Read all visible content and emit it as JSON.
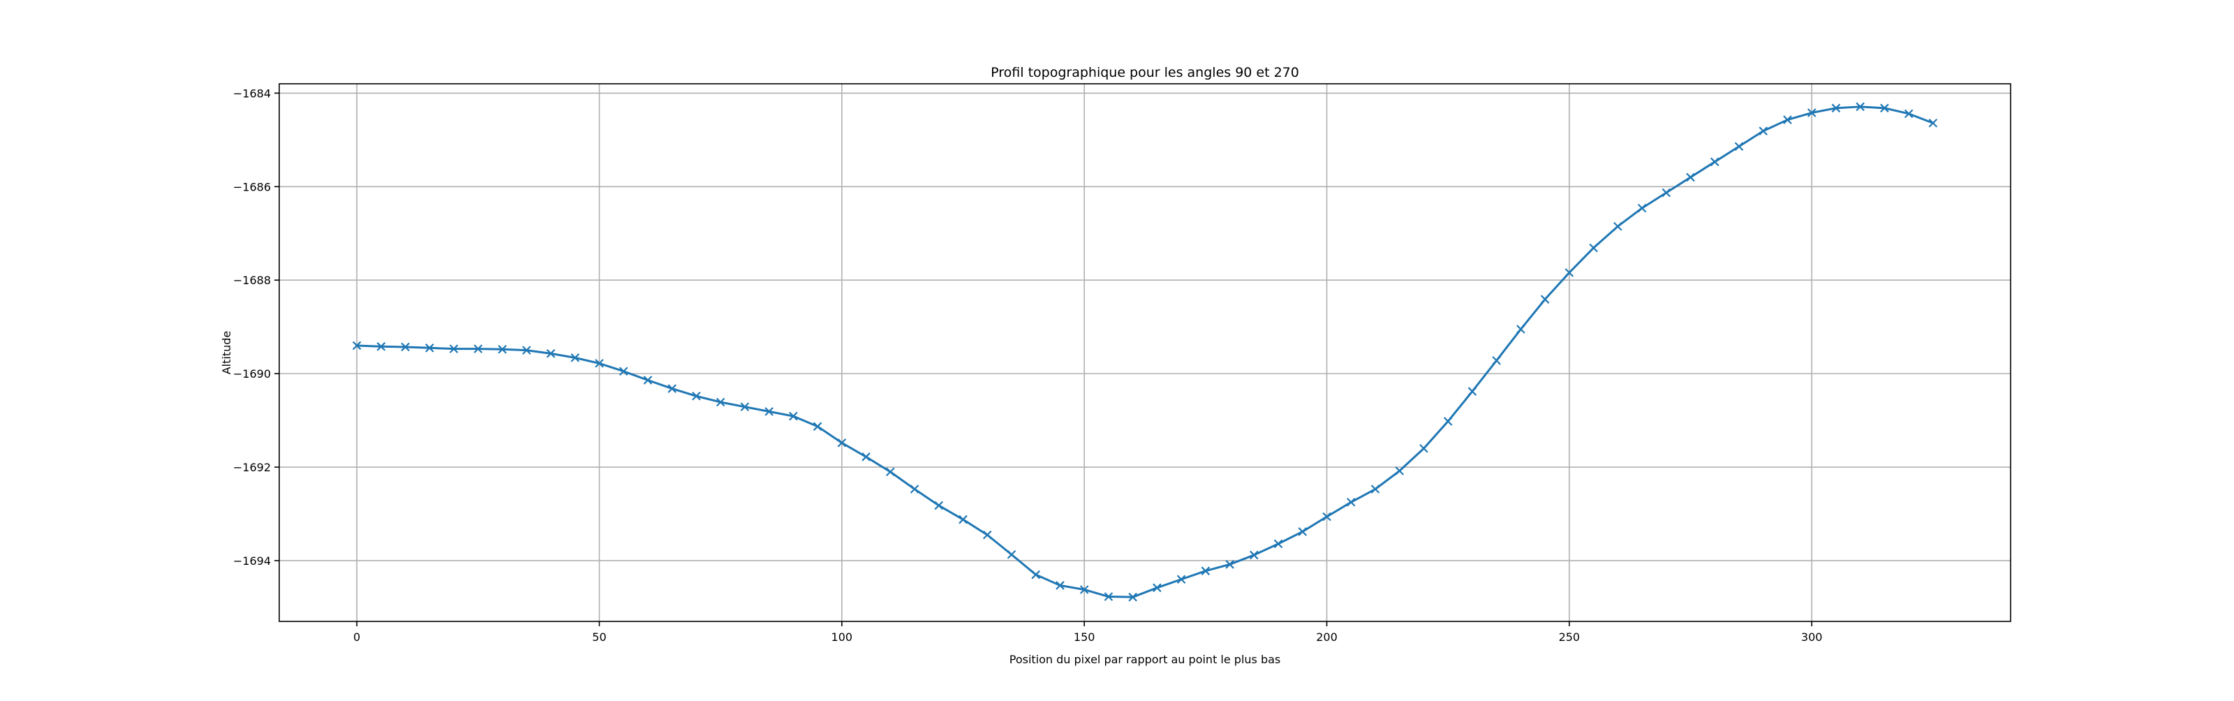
{
  "chart_data": {
    "type": "line",
    "title": "Profil topographique pour les angles 90 et 270",
    "xlabel": "Position du pixel par rapport au point le plus bas",
    "ylabel": "Altitude",
    "xlim": [
      -16,
      341
    ],
    "ylim": [
      -1695.3,
      -1683.8
    ],
    "xticks": [
      0,
      50,
      100,
      150,
      200,
      250,
      300
    ],
    "yticks": [
      -1694,
      -1692,
      -1690,
      -1688,
      -1686,
      -1684
    ],
    "grid": true,
    "series": [
      {
        "color": "#1f77b4",
        "marker": "x",
        "x": [
          0,
          5,
          10,
          15,
          20,
          25,
          30,
          35,
          40,
          45,
          50,
          55,
          60,
          65,
          70,
          75,
          80,
          85,
          90,
          95,
          100,
          105,
          110,
          115,
          120,
          125,
          130,
          135,
          140,
          145,
          150,
          155,
          160,
          165,
          170,
          175,
          180,
          185,
          190,
          195,
          200,
          205,
          210,
          215,
          220,
          225,
          230,
          235,
          240,
          245,
          250,
          255,
          260,
          265,
          270,
          275,
          280,
          285,
          290,
          295,
          300,
          305,
          310,
          315,
          320,
          325
        ],
        "y": [
          -1689.4,
          -1689.42,
          -1689.43,
          -1689.45,
          -1689.47,
          -1689.47,
          -1689.48,
          -1689.5,
          -1689.57,
          -1689.66,
          -1689.78,
          -1689.95,
          -1690.14,
          -1690.32,
          -1690.48,
          -1690.61,
          -1690.71,
          -1690.81,
          -1690.91,
          -1691.13,
          -1691.48,
          -1691.78,
          -1692.1,
          -1692.47,
          -1692.82,
          -1693.12,
          -1693.45,
          -1693.87,
          -1694.3,
          -1694.53,
          -1694.62,
          -1694.77,
          -1694.78,
          -1694.58,
          -1694.4,
          -1694.22,
          -1694.08,
          -1693.88,
          -1693.64,
          -1693.38,
          -1693.06,
          -1692.75,
          -1692.47,
          -1692.08,
          -1691.6,
          -1691.02,
          -1690.38,
          -1689.72,
          -1689.05,
          -1688.41,
          -1687.84,
          -1687.31,
          -1686.85,
          -1686.46,
          -1686.13,
          -1685.8,
          -1685.47,
          -1685.14,
          -1684.81,
          -1684.57,
          -1684.42,
          -1684.32,
          -1684.29,
          -1684.32,
          -1684.44,
          -1684.64
        ]
      }
    ]
  }
}
